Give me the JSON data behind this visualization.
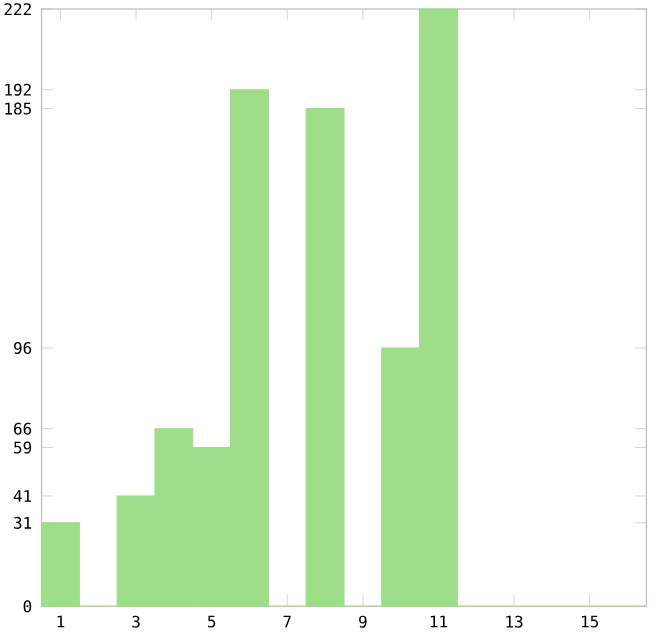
{
  "chart_data": {
    "type": "bar",
    "categories": [
      "1",
      null,
      "3",
      null,
      "5",
      null,
      "7",
      null,
      "9",
      null,
      "11",
      null,
      "13",
      null,
      "15",
      null
    ],
    "values": [
      31,
      0,
      41,
      66,
      59,
      192,
      0,
      185,
      0,
      96,
      222,
      0,
      0,
      0,
      0,
      0
    ],
    "color": "#9ede88",
    "ylim": [
      0,
      222
    ],
    "yticks": [
      0,
      31,
      41,
      59,
      66,
      96,
      185,
      192,
      222
    ],
    "grid": false
  }
}
